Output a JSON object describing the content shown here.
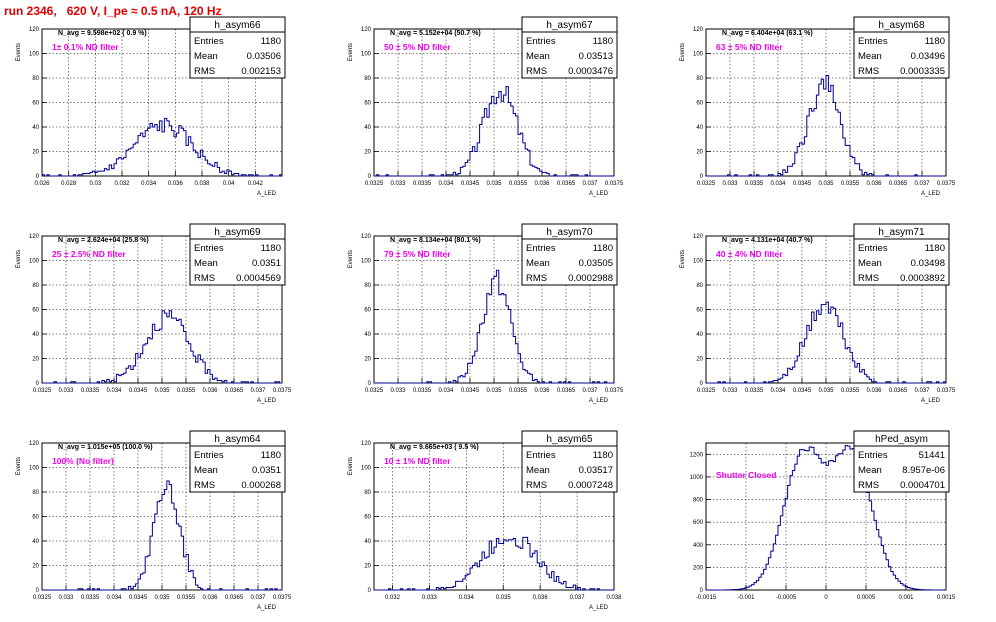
{
  "run_title": "run 2346,   620 V, I_pe ≈ 0.5 nA, 120 Hz",
  "colors": {
    "hist_line": "#000090",
    "annotation": "#ee00ee",
    "title": "#e00000",
    "grid": "#000000"
  },
  "stats_labels": {
    "entries": "Entries",
    "mean": "Mean",
    "rms": "RMS"
  },
  "chart_data": [
    {
      "type": "histogram",
      "name": "h_asym66",
      "entries": "1180",
      "mean": "0.03506",
      "rms": "0.002153",
      "navg": "N_avg = 9.598e+02 ( 0.9 %)",
      "annotation": "1± 0.1% ND filter",
      "ylabel": "Events",
      "xlabel": "A_LED",
      "xlim": [
        0.026,
        0.044
      ],
      "ylim": [
        0,
        120
      ],
      "xticks": [
        "0.026",
        "0.028",
        "0.03",
        "0.032",
        "0.034",
        "0.036",
        "0.038",
        "0.04",
        "0.042"
      ],
      "yticks": [
        "0",
        "20",
        "40",
        "60",
        "80",
        "100",
        "120"
      ],
      "mu": 0.0351,
      "sigma": 0.00215,
      "bins": 100,
      "seed": 66
    },
    {
      "type": "histogram",
      "name": "h_asym67",
      "entries": "1180",
      "mean": "0.03513",
      "rms": "0.0003476",
      "navg": "N_avg = 5.152e+04 (50.7 %)",
      "annotation": "50 ± 5% ND filter",
      "ylabel": "Events",
      "xlabel": "A_LED",
      "xlim": [
        0.0325,
        0.0375
      ],
      "ylim": [
        0,
        120
      ],
      "xticks": [
        "0.0325",
        "0.033",
        "0.0335",
        "0.034",
        "0.0345",
        "0.035",
        "0.0355",
        "0.036",
        "0.0365",
        "0.037",
        "0.0375"
      ],
      "yticks": [
        "0",
        "20",
        "40",
        "60",
        "80",
        "100",
        "120"
      ],
      "mu": 0.03513,
      "sigma": 0.00035,
      "bins": 100,
      "seed": 67
    },
    {
      "type": "histogram",
      "name": "h_asym68",
      "entries": "1180",
      "mean": "0.03496",
      "rms": "0.0003335",
      "navg": "N_avg = 6.404e+04 (63.1 %)",
      "annotation": "63 ± 5% ND filter",
      "ylabel": "Events",
      "xlabel": "A_LED",
      "xlim": [
        0.0325,
        0.0375
      ],
      "ylim": [
        0,
        120
      ],
      "xticks": [
        "0.0325",
        "0.033",
        "0.0335",
        "0.034",
        "0.0345",
        "0.035",
        "0.0355",
        "0.036",
        "0.0365",
        "0.037",
        "0.0375"
      ],
      "yticks": [
        "0",
        "20",
        "40",
        "60",
        "80",
        "100",
        "120"
      ],
      "mu": 0.03496,
      "sigma": 0.00033,
      "bins": 100,
      "seed": 68
    },
    {
      "type": "histogram",
      "name": "h_asym69",
      "entries": "1180",
      "mean": "0.0351",
      "rms": "0.0004569",
      "navg": "N_avg = 2.624e+04 (25.8 %)",
      "annotation": "25 ± 2.5% ND filter",
      "ylabel": "Events",
      "xlabel": "A_LED",
      "xlim": [
        0.0325,
        0.0375
      ],
      "ylim": [
        0,
        120
      ],
      "xticks": [
        "0.0325",
        "0.033",
        "0.0335",
        "0.034",
        "0.0345",
        "0.035",
        "0.0355",
        "0.036",
        "0.0365",
        "0.037",
        "0.0375"
      ],
      "yticks": [
        "0",
        "20",
        "40",
        "60",
        "80",
        "100",
        "120"
      ],
      "mu": 0.0351,
      "sigma": 0.00046,
      "bins": 100,
      "seed": 69
    },
    {
      "type": "histogram",
      "name": "h_asym70",
      "entries": "1180",
      "mean": "0.03505",
      "rms": "0.0002988",
      "navg": "N_avg = 8.134e+04 (80.1 %)",
      "annotation": "79 ± 5% ND filter",
      "ylabel": "Events",
      "xlabel": "A_LED",
      "xlim": [
        0.0325,
        0.0375
      ],
      "ylim": [
        0,
        120
      ],
      "xticks": [
        "0.0325",
        "0.033",
        "0.0335",
        "0.034",
        "0.0345",
        "0.035",
        "0.0355",
        "0.036",
        "0.0365",
        "0.037",
        "0.0375"
      ],
      "yticks": [
        "0",
        "20",
        "40",
        "60",
        "80",
        "100",
        "120"
      ],
      "mu": 0.03505,
      "sigma": 0.0003,
      "bins": 100,
      "seed": 70
    },
    {
      "type": "histogram",
      "name": "h_asym71",
      "entries": "1180",
      "mean": "0.03498",
      "rms": "0.0003892",
      "navg": "N_avg = 4.131e+04 (40.7 %)",
      "annotation": "40 ± 4% ND filter",
      "ylabel": "Events",
      "xlabel": "A_LED",
      "xlim": [
        0.0325,
        0.0375
      ],
      "ylim": [
        0,
        120
      ],
      "xticks": [
        "0.0325",
        "0.033",
        "0.0335",
        "0.034",
        "0.0345",
        "0.035",
        "0.0355",
        "0.036",
        "0.0365",
        "0.037",
        "0.0375"
      ],
      "yticks": [
        "0",
        "20",
        "40",
        "60",
        "80",
        "100",
        "120"
      ],
      "mu": 0.03498,
      "sigma": 0.00039,
      "bins": 100,
      "seed": 71
    },
    {
      "type": "histogram",
      "name": "h_asym64",
      "entries": "1180",
      "mean": "0.0351",
      "rms": "0.000268",
      "navg": "N_avg = 1.015e+05 (100.0 %)",
      "annotation": "100% (No filter)",
      "ylabel": "Events",
      "xlabel": "A_LED",
      "xlim": [
        0.0325,
        0.0375
      ],
      "ylim": [
        0,
        120
      ],
      "xticks": [
        "0.0325",
        "0.033",
        "0.0335",
        "0.034",
        "0.0345",
        "0.035",
        "0.0355",
        "0.036",
        "0.0365",
        "0.037",
        "0.0375"
      ],
      "yticks": [
        "0",
        "20",
        "40",
        "60",
        "80",
        "100",
        "120"
      ],
      "mu": 0.0351,
      "sigma": 0.00027,
      "bins": 100,
      "seed": 64
    },
    {
      "type": "histogram",
      "name": "h_asym65",
      "entries": "1180",
      "mean": "0.03517",
      "rms": "0.0007248",
      "navg": "N_avg = 9.665e+03 ( 9.5 %)",
      "annotation": "10 ± 1% ND filter",
      "ylabel": "Events",
      "xlabel": "A_LED",
      "xlim": [
        0.0315,
        0.038
      ],
      "ylim": [
        0,
        120
      ],
      "xticks": [
        "0.032",
        "0.033",
        "0.034",
        "0.035",
        "0.036",
        "0.037",
        "0.038"
      ],
      "xtickvals": [
        0.032,
        0.033,
        0.034,
        0.035,
        0.036,
        0.037,
        0.038
      ],
      "yticks": [
        "0",
        "20",
        "40",
        "60",
        "80",
        "100",
        "120"
      ],
      "mu": 0.03517,
      "sigma": 0.00072,
      "bins": 100,
      "seed": 65
    },
    {
      "type": "histogram",
      "name": "hPed_asym",
      "entries": "51441",
      "mean": "8.957e-06",
      "rms": "0.0004701",
      "navg": "",
      "annotation": "Shutter Closed",
      "ylabel": "",
      "xlabel": "",
      "xlim": [
        -0.0015,
        0.0015
      ],
      "ylim": [
        0,
        1300
      ],
      "xticks": [
        "-0.0015",
        "-0.001",
        "-0.0005",
        "0",
        "0.0005",
        "0.001",
        "0.0015"
      ],
      "yticks": [
        "0",
        "200",
        "400",
        "600",
        "800",
        "1000",
        "1200"
      ],
      "bimodal": [
        [
          -0.00028,
          0.00025,
          0.5
        ],
        [
          0.00033,
          0.00025,
          0.5
        ]
      ],
      "bins": 100,
      "seed": 99,
      "peak": 1260
    }
  ]
}
